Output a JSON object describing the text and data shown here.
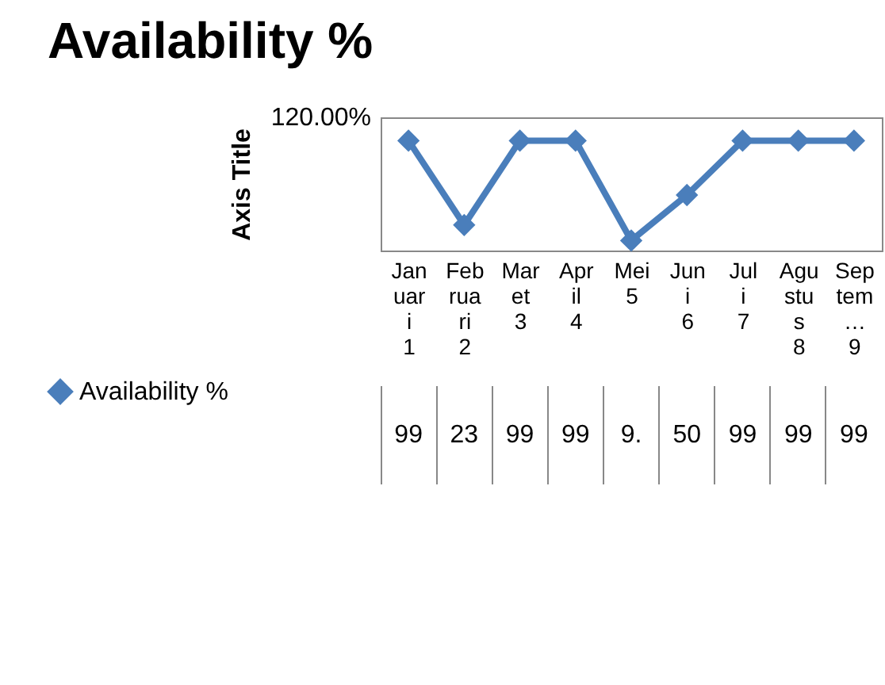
{
  "chart_data": {
    "type": "line",
    "title": "Availability %",
    "ylabel": "Axis Title",
    "categories": [
      "Januari 1",
      "Februari 2",
      "Maret 3",
      "April 4",
      "Mei 5",
      "Juni 6",
      "Juli 7",
      "Agustus 8",
      "Septem… 9"
    ],
    "series": [
      {
        "name": "Availability %",
        "color": "#4a7ebb",
        "values": [
          99,
          23,
          99,
          99,
          9,
          50,
          99,
          99,
          99
        ],
        "value_labels": [
          "99",
          "23",
          "99",
          "99",
          "9.",
          "50",
          "99",
          "99",
          "99"
        ]
      }
    ],
    "ylim": [
      0,
      120
    ],
    "annotations": [
      "120.00%"
    ],
    "legend": "bottom left",
    "marker": "diamond",
    "line_style": "solid"
  }
}
